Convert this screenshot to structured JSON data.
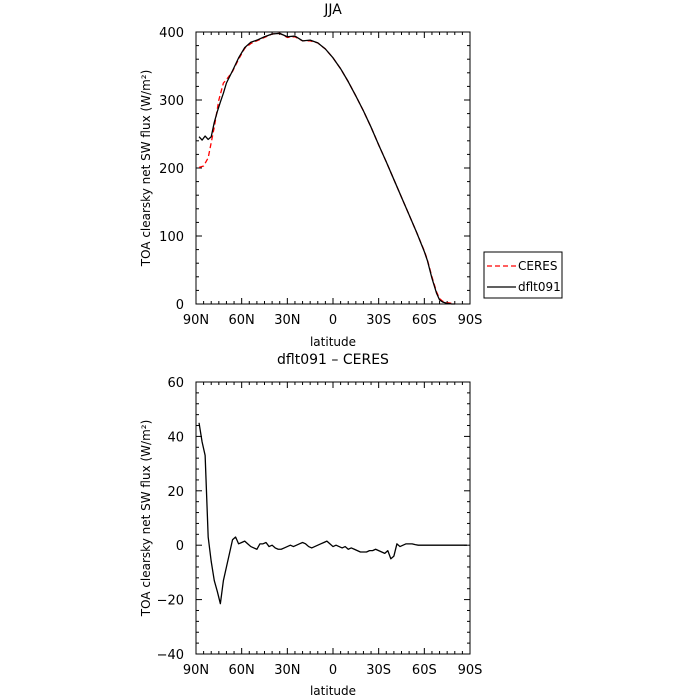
{
  "chart_data": [
    {
      "type": "line",
      "title": "JJA",
      "xlabel": "latitude",
      "ylabel": "TOA clearsky net SW flux (W/m²)",
      "xlim": [
        90,
        -90
      ],
      "ylim": [
        0,
        400
      ],
      "x_ticks": [
        90,
        60,
        30,
        0,
        -30,
        -60,
        -90
      ],
      "x_tick_labels": [
        "90N",
        "60N",
        "30N",
        "0",
        "30S",
        "60S",
        "90S"
      ],
      "y_ticks": [
        0,
        100,
        200,
        300,
        400
      ],
      "y_tick_labels": [
        "0",
        "100",
        "200",
        "300",
        "400"
      ],
      "legend": {
        "placement": "right-outside",
        "entries": [
          "CERES",
          "dflt091"
        ]
      },
      "series": [
        {
          "name": "CERES",
          "color": "#ff0000",
          "dash": "dashed",
          "x": [
            88,
            85,
            82,
            78,
            75,
            72,
            70,
            66,
            62,
            58,
            54,
            50,
            45,
            40,
            35,
            30,
            25,
            20,
            15,
            10,
            5,
            0,
            -5,
            -10,
            -15,
            -20,
            -25,
            -30,
            -35,
            -40,
            -45,
            -50,
            -55,
            -60,
            -62,
            -65,
            -68,
            -70,
            -72,
            -75,
            -78,
            -80
          ],
          "y": [
            201,
            203,
            215,
            260,
            300,
            325,
            330,
            342,
            360,
            376,
            383,
            387,
            392,
            397,
            398,
            392,
            393,
            387,
            387,
            384,
            375,
            362,
            346,
            327,
            306,
            284,
            260,
            234,
            209,
            183,
            157,
            131,
            105,
            78,
            65,
            40,
            18,
            8,
            4,
            2,
            1,
            0
          ]
        },
        {
          "name": "dflt091",
          "color": "#000000",
          "dash": "solid",
          "x": [
            88,
            86,
            84,
            82,
            80,
            78,
            76,
            74,
            72,
            70,
            66,
            62,
            58,
            54,
            50,
            45,
            40,
            35,
            30,
            25,
            20,
            15,
            10,
            5,
            0,
            -5,
            -10,
            -15,
            -20,
            -25,
            -30,
            -35,
            -40,
            -45,
            -50,
            -55,
            -60,
            -62,
            -65,
            -68,
            -70,
            -72,
            -75,
            -78,
            -80
          ],
          "y": [
            246,
            241,
            247,
            242,
            246,
            267,
            283,
            297,
            310,
            325,
            343,
            362,
            377,
            385,
            388,
            393,
            397,
            398,
            393,
            394,
            387,
            388,
            384,
            375,
            362,
            346,
            327,
            306,
            284,
            260,
            234,
            209,
            183,
            157,
            131,
            105,
            77,
            64,
            38,
            16,
            6,
            3,
            1,
            0,
            0
          ]
        }
      ]
    },
    {
      "type": "line",
      "title": "dflt091 – CERES",
      "xlabel": "latitude",
      "ylabel": "TOA clearsky net SW flux (W/m²)",
      "xlim": [
        90,
        -90
      ],
      "ylim": [
        -40,
        60
      ],
      "x_ticks": [
        90,
        60,
        30,
        0,
        -30,
        -60,
        -90
      ],
      "x_tick_labels": [
        "90N",
        "60N",
        "30N",
        "0",
        "30S",
        "60S",
        "90S"
      ],
      "y_ticks": [
        -40,
        -20,
        0,
        20,
        40,
        60
      ],
      "y_tick_labels": [
        "−40",
        "−20",
        "0",
        "20",
        "40",
        "60"
      ],
      "series": [
        {
          "color": "#000000",
          "dash": "solid",
          "x": [
            88,
            86,
            84,
            82,
            80,
            78,
            76,
            74,
            72,
            70,
            68,
            66,
            64,
            62,
            60,
            58,
            56,
            54,
            52,
            50,
            48,
            46,
            44,
            42,
            40,
            38,
            36,
            34,
            32,
            30,
            28,
            26,
            24,
            22,
            20,
            18,
            16,
            14,
            12,
            10,
            8,
            6,
            4,
            2,
            0,
            -2,
            -4,
            -6,
            -8,
            -10,
            -12,
            -14,
            -16,
            -18,
            -20,
            -22,
            -24,
            -26,
            -28,
            -30,
            -32,
            -34,
            -36,
            -38,
            -40,
            -42,
            -44,
            -46,
            -48,
            -50,
            -52,
            -54,
            -56,
            -58,
            -60,
            -62,
            -64,
            -66,
            -68,
            -70,
            -72,
            -74,
            -76,
            -78,
            -80,
            -82,
            -85,
            -88
          ],
          "y": [
            45,
            38,
            33,
            3,
            -6,
            -13,
            -17,
            -21.5,
            -13,
            -8,
            -3,
            2,
            3,
            0.5,
            1,
            1.5,
            0.5,
            -0.5,
            -1,
            -1.5,
            0.5,
            0.5,
            1,
            -0.5,
            0,
            -1,
            -1.5,
            -1.5,
            -1,
            -0.5,
            0,
            -0.5,
            0,
            0.5,
            1,
            0.5,
            -0.5,
            -1,
            -0.5,
            0,
            0.5,
            1,
            1.5,
            0.5,
            -0.5,
            0,
            -0.5,
            -1,
            -0.5,
            -1.5,
            -1,
            -1.5,
            -2,
            -2.5,
            -2.5,
            -2.5,
            -2,
            -2,
            -1.5,
            -2,
            -2.5,
            -3,
            -2,
            -5,
            -4,
            0.5,
            -0.5,
            0,
            0.5,
            0.5,
            0.5,
            0.2,
            0,
            0,
            0,
            0,
            0,
            0,
            0,
            0,
            0,
            0,
            0,
            0,
            0,
            0,
            0,
            0
          ]
        }
      ]
    }
  ]
}
